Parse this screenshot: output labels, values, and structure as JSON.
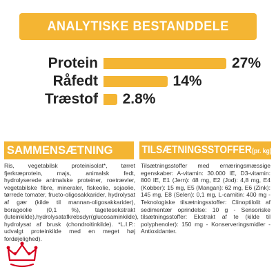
{
  "title": "ANALYTISKE BESTANDDELE",
  "nutrients": [
    {
      "label": "Protein",
      "value": "27%",
      "fraction": 1.0
    },
    {
      "label": "Råfedt",
      "value": "14%",
      "fraction": 0.52
    },
    {
      "label": "Træstof",
      "value": "2.8%",
      "fraction": 0.11
    }
  ],
  "composition": {
    "title": "SAMMENSÆTNING",
    "text": "Ris, vegetabilsk proteinisolat*, tørret fjerkræprotein, majs, animalsk fedt, hydrolyserede animalske proteiner, roetrævler, vegetabilske fibre, mineraler, fiskeolie, sojaolie, tørrede tomater, fructo-oligosakkarider, hydrolysat af gær (kilde til mannan-oligosakkarider), boragoolie (0,1 %), tagetesekstrakt (luteinkilde),hydrolysatafkrebsdyr(glucosaminkilde), hydrolysat af brusk (chondroitinkilde). *L.I.P.: udvalgt proteinkilde med en meget høj fordøjelighed)."
  },
  "additives": {
    "title": "TILSÆTNINGSSTOFFER",
    "subtitle": "(pr. kg)",
    "text": "Tilsætningsstoffer med ernæringsmæssige egenskaber: A-vitamin: 30.000 IE, D3-vitamin: 800 IE, E1 (Jern): 48 mg, E2 (Jod): 4,8 mg, E4 (Kobber): 15 mg, E5 (Mangan): 62 mg, E6 (Zink): 145 mg, E8 (Selen): 0,1 mg, L-carnitin: 400 mg - Teknologiske tilsætningsstoffer: Clinoptilolit af sedimentær oprindelse: 10 g - Sensoriske tilsætningsstoffer: Ekstrakt af te (kilde til polyphenoler): 150 mg - Konserveringsmidler - Antioxidanter."
  },
  "colors": {
    "accent": "#f4b533",
    "brand_red": "#d6001c"
  },
  "logo_icon": "royal-canin-crown-icon"
}
